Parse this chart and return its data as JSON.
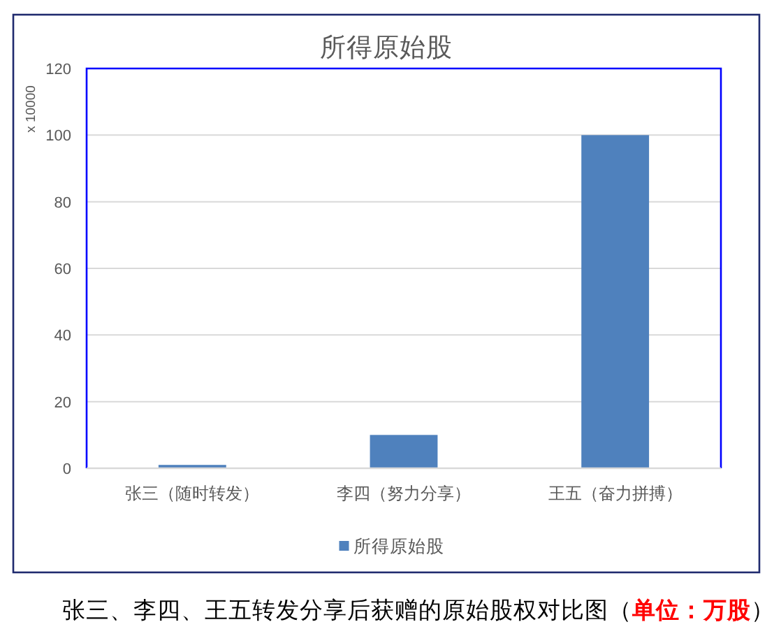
{
  "chart_data": {
    "type": "bar",
    "title": "所得原始股",
    "ylabel": "x 10000",
    "categories": [
      "张三（随时转发）",
      "李四（努力分享）",
      "王五（奋力拼搏）"
    ],
    "series": [
      {
        "name": "所得原始股",
        "color": "#4f81bd",
        "values": [
          1,
          10,
          100
        ]
      }
    ],
    "ylim": [
      0,
      120
    ],
    "yticks": [
      0,
      20,
      40,
      60,
      80,
      100,
      120
    ],
    "grid": "y",
    "legend": "bottom",
    "annotations": [
      "张三、李四、王五转发分享后获赠的原始股权对比图（**单位：万股**）"
    ]
  }
}
